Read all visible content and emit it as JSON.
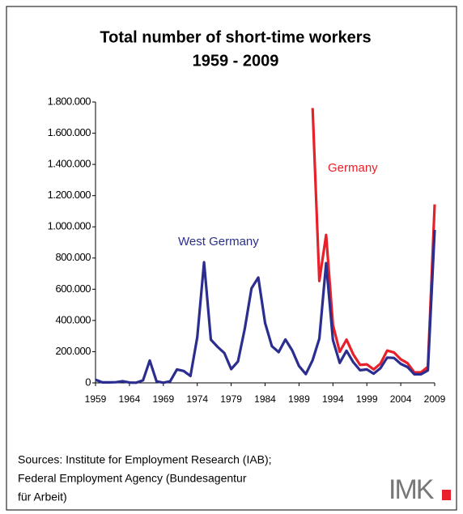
{
  "chart_data": {
    "type": "line",
    "title": [
      "Total number of short-time workers",
      "1959 - 2009"
    ],
    "x": [
      1959,
      1960,
      1961,
      1962,
      1963,
      1964,
      1965,
      1966,
      1967,
      1968,
      1969,
      1970,
      1971,
      1972,
      1973,
      1974,
      1975,
      1976,
      1977,
      1978,
      1979,
      1980,
      1981,
      1982,
      1983,
      1984,
      1985,
      1986,
      1987,
      1988,
      1989,
      1990,
      1991,
      1992,
      1993,
      1994,
      1995,
      1996,
      1997,
      1998,
      1999,
      2000,
      2001,
      2002,
      2003,
      2004,
      2005,
      2006,
      2007,
      2008,
      2009
    ],
    "series": [
      {
        "name": "Germany",
        "color": "#e8202a",
        "values": [
          null,
          null,
          null,
          null,
          null,
          null,
          null,
          null,
          null,
          null,
          null,
          null,
          null,
          null,
          null,
          null,
          null,
          null,
          null,
          null,
          null,
          null,
          null,
          null,
          null,
          null,
          null,
          null,
          null,
          null,
          null,
          null,
          1761000,
          653000,
          948000,
          372000,
          199000,
          277000,
          183000,
          115000,
          119000,
          86000,
          123000,
          207000,
          195000,
          151000,
          126000,
          67000,
          68000,
          102000,
          1144000
        ]
      },
      {
        "name": "West Germany",
        "color": "#2b2e8f",
        "values": [
          20000,
          3000,
          3000,
          4000,
          11000,
          2000,
          1000,
          16000,
          143000,
          10000,
          1000,
          10000,
          86000,
          76000,
          44000,
          292000,
          773000,
          277000,
          231000,
          191000,
          88000,
          137000,
          347000,
          606000,
          675000,
          384000,
          235000,
          197000,
          278000,
          208000,
          108000,
          56000,
          145000,
          283000,
          767000,
          275000,
          128000,
          206000,
          133000,
          81000,
          86000,
          59000,
          94000,
          162000,
          160000,
          122000,
          101000,
          55000,
          55000,
          80000,
          980000
        ]
      }
    ],
    "xlim": [
      1959,
      2009
    ],
    "xticks": [
      1959,
      1964,
      1969,
      1974,
      1979,
      1984,
      1989,
      1994,
      1999,
      2004,
      2009
    ],
    "ylim": [
      0,
      1800000
    ],
    "yticks": [
      0,
      {
        "value": 200000,
        "label": "200.000"
      },
      {
        "value": 400000,
        "label": "400.000"
      },
      {
        "value": 600000,
        "label": "600.000"
      },
      {
        "value": 800000,
        "label": "800.000"
      },
      {
        "value": 1000000,
        "label": "1.000.000"
      },
      {
        "value": 1200000,
        "label": "1.200.000"
      },
      {
        "value": 1400000,
        "label": "1.400.000"
      },
      {
        "value": 1600000,
        "label": "1.600.000"
      },
      {
        "value": 1800000,
        "label": "1.800.000"
      }
    ],
    "grid": false,
    "source": [
      "Sources: Institute for Employment Research (IAB);",
      "Federal Employment Agency (Bundesagentur",
      "für Arbeit)"
    ],
    "logo": "IMK"
  }
}
